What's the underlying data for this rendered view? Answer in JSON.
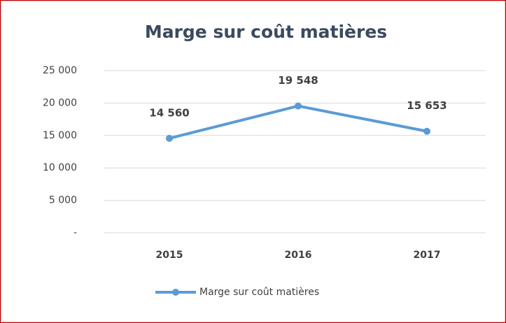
{
  "chart_data": {
    "type": "line",
    "title": "Marge sur coût matières",
    "categories": [
      "2015",
      "2016",
      "2017"
    ],
    "series": [
      {
        "name": "Marge sur coût matières",
        "color": "#5b9bd5",
        "values": [
          14560,
          19548,
          15653
        ],
        "value_labels": [
          "14 560",
          "19 548",
          "15 653"
        ]
      }
    ],
    "ylim": [
      0,
      25000
    ],
    "yticks": [
      {
        "value": 0,
        "label": "-"
      },
      {
        "value": 5000,
        "label": "5 000"
      },
      {
        "value": 10000,
        "label": "10 000"
      },
      {
        "value": 15000,
        "label": "15 000"
      },
      {
        "value": 20000,
        "label": "20 000"
      },
      {
        "value": 25000,
        "label": "25 000"
      }
    ],
    "grid": true,
    "legend": "bottom"
  }
}
